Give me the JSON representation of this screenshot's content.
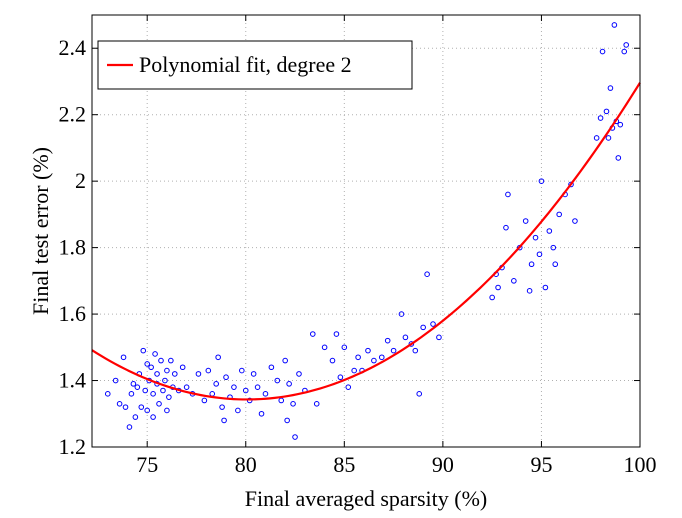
{
  "chart_data": {
    "type": "scatter",
    "title": "",
    "xlabel": "Final averaged sparsity (%)",
    "ylabel": "Final test error (%)",
    "xlim": [
      72.2,
      100
    ],
    "ylim": [
      1.2,
      2.5
    ],
    "xticks": [
      75,
      80,
      85,
      90,
      95,
      100
    ],
    "yticks": [
      1.2,
      1.4,
      1.6,
      1.8,
      2,
      2.2,
      2.4
    ],
    "xtick_labels": [
      "75",
      "80",
      "85",
      "90",
      "95",
      "100"
    ],
    "ytick_labels": [
      "1.2",
      "1.4",
      "1.6",
      "1.8",
      "2",
      "2.2",
      "2.4"
    ],
    "grid": true,
    "legend": {
      "placement": "top-left",
      "entries": [
        {
          "label": "Polynomial fit, degree 2",
          "color": "#ff0000",
          "marker": "line"
        }
      ]
    },
    "colors": {
      "points": "#0000ff",
      "fit": "#ff0000",
      "grid": "#b0b0b0",
      "axes": "#000000"
    },
    "fit": {
      "degree": 2,
      "points": [
        [
          72.2,
          1.48
        ],
        [
          75,
          1.41
        ],
        [
          80,
          1.355
        ],
        [
          85,
          1.41
        ],
        [
          90,
          1.57
        ],
        [
          95,
          1.86
        ],
        [
          100,
          2.31
        ]
      ]
    },
    "points": [
      [
        73.0,
        1.36
      ],
      [
        73.4,
        1.4
      ],
      [
        73.6,
        1.33
      ],
      [
        73.8,
        1.47
      ],
      [
        73.9,
        1.32
      ],
      [
        74.1,
        1.26
      ],
      [
        74.2,
        1.36
      ],
      [
        74.3,
        1.39
      ],
      [
        74.4,
        1.29
      ],
      [
        74.5,
        1.38
      ],
      [
        74.6,
        1.42
      ],
      [
        74.7,
        1.32
      ],
      [
        74.8,
        1.49
      ],
      [
        74.9,
        1.37
      ],
      [
        75.0,
        1.45
      ],
      [
        75.0,
        1.31
      ],
      [
        75.1,
        1.4
      ],
      [
        75.2,
        1.44
      ],
      [
        75.3,
        1.36
      ],
      [
        75.3,
        1.29
      ],
      [
        75.4,
        1.48
      ],
      [
        75.5,
        1.39
      ],
      [
        75.5,
        1.42
      ],
      [
        75.6,
        1.33
      ],
      [
        75.7,
        1.46
      ],
      [
        75.8,
        1.37
      ],
      [
        75.9,
        1.4
      ],
      [
        76.0,
        1.43
      ],
      [
        76.0,
        1.31
      ],
      [
        76.1,
        1.35
      ],
      [
        76.2,
        1.46
      ],
      [
        76.3,
        1.38
      ],
      [
        76.4,
        1.42
      ],
      [
        76.6,
        1.37
      ],
      [
        76.8,
        1.44
      ],
      [
        77.0,
        1.38
      ],
      [
        77.3,
        1.36
      ],
      [
        77.6,
        1.42
      ],
      [
        77.9,
        1.34
      ],
      [
        78.1,
        1.43
      ],
      [
        78.3,
        1.36
      ],
      [
        78.5,
        1.39
      ],
      [
        78.6,
        1.47
      ],
      [
        78.8,
        1.32
      ],
      [
        78.9,
        1.28
      ],
      [
        79.0,
        1.41
      ],
      [
        79.2,
        1.35
      ],
      [
        79.4,
        1.38
      ],
      [
        79.6,
        1.31
      ],
      [
        79.8,
        1.43
      ],
      [
        80.0,
        1.37
      ],
      [
        80.2,
        1.34
      ],
      [
        80.4,
        1.42
      ],
      [
        80.6,
        1.38
      ],
      [
        80.8,
        1.3
      ],
      [
        81.0,
        1.36
      ],
      [
        81.3,
        1.44
      ],
      [
        81.6,
        1.4
      ],
      [
        81.8,
        1.34
      ],
      [
        82.0,
        1.46
      ],
      [
        82.1,
        1.28
      ],
      [
        82.2,
        1.39
      ],
      [
        82.4,
        1.33
      ],
      [
        82.5,
        1.23
      ],
      [
        82.7,
        1.42
      ],
      [
        83.0,
        1.37
      ],
      [
        83.4,
        1.54
      ],
      [
        83.6,
        1.33
      ],
      [
        84.0,
        1.5
      ],
      [
        84.4,
        1.46
      ],
      [
        84.6,
        1.54
      ],
      [
        84.8,
        1.41
      ],
      [
        85.0,
        1.5
      ],
      [
        85.2,
        1.38
      ],
      [
        85.5,
        1.43
      ],
      [
        85.7,
        1.47
      ],
      [
        85.9,
        1.43
      ],
      [
        86.2,
        1.49
      ],
      [
        86.5,
        1.46
      ],
      [
        86.9,
        1.47
      ],
      [
        87.2,
        1.52
      ],
      [
        87.5,
        1.49
      ],
      [
        87.9,
        1.6
      ],
      [
        88.1,
        1.53
      ],
      [
        88.4,
        1.51
      ],
      [
        88.6,
        1.49
      ],
      [
        88.8,
        1.36
      ],
      [
        89.0,
        1.56
      ],
      [
        89.2,
        1.72
      ],
      [
        89.5,
        1.57
      ],
      [
        89.8,
        1.53
      ],
      [
        92.5,
        1.65
      ],
      [
        92.7,
        1.72
      ],
      [
        92.8,
        1.68
      ],
      [
        93.0,
        1.74
      ],
      [
        93.2,
        1.86
      ],
      [
        93.3,
        1.96
      ],
      [
        93.6,
        1.7
      ],
      [
        93.9,
        1.8
      ],
      [
        94.2,
        1.88
      ],
      [
        94.4,
        1.67
      ],
      [
        94.5,
        1.75
      ],
      [
        94.7,
        1.83
      ],
      [
        94.9,
        1.78
      ],
      [
        95.0,
        2.0
      ],
      [
        95.2,
        1.68
      ],
      [
        95.4,
        1.85
      ],
      [
        95.6,
        1.8
      ],
      [
        95.7,
        1.75
      ],
      [
        95.9,
        1.9
      ],
      [
        96.2,
        1.96
      ],
      [
        96.5,
        1.99
      ],
      [
        96.7,
        1.88
      ],
      [
        97.8,
        2.13
      ],
      [
        98.0,
        2.19
      ],
      [
        98.1,
        2.39
      ],
      [
        98.3,
        2.21
      ],
      [
        98.4,
        2.13
      ],
      [
        98.5,
        2.28
      ],
      [
        98.6,
        2.16
      ],
      [
        98.7,
        2.47
      ],
      [
        98.8,
        2.18
      ],
      [
        98.9,
        2.07
      ],
      [
        99.0,
        2.17
      ],
      [
        99.2,
        2.39
      ],
      [
        99.3,
        2.41
      ]
    ]
  }
}
